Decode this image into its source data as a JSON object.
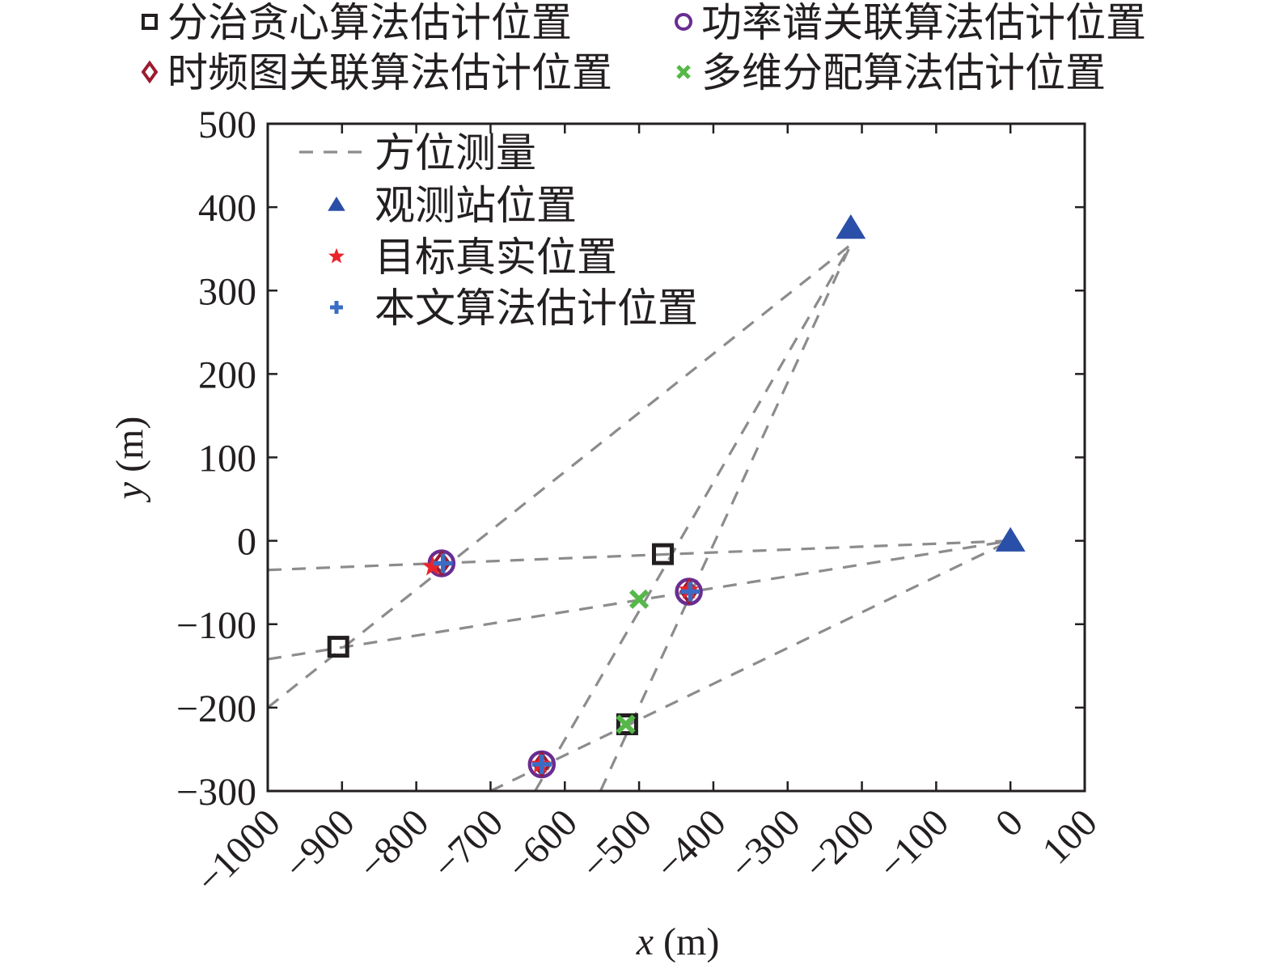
{
  "chart_data": {
    "type": "scatter",
    "xlabel_var": "x",
    "xlabel_unit": "(m)",
    "ylabel_var": "y",
    "ylabel_unit": "(m)",
    "xlim": [
      -1000,
      100
    ],
    "ylim": [
      -300,
      500
    ],
    "x_ticks": [
      -1000,
      -900,
      -800,
      -700,
      -600,
      -500,
      -400,
      -300,
      -200,
      -100,
      0,
      100
    ],
    "x_tick_labels": [
      "−1000",
      "−900",
      "−800",
      "−700",
      "−600",
      "−500",
      "−400",
      "−300",
      "−200",
      "−100",
      "0",
      "100"
    ],
    "y_ticks": [
      -300,
      -200,
      -100,
      0,
      100,
      200,
      300,
      400,
      500
    ],
    "y_tick_labels": [
      "−300",
      "−200",
      "−100",
      "0",
      "100",
      "200",
      "300",
      "400",
      "500"
    ],
    "grid": false,
    "top_legend": [
      {
        "name": "分治贪心算法估计位置",
        "marker": "square",
        "color": "#231f20"
      },
      {
        "name": "功率谱关联算法估计位置",
        "marker": "circle",
        "color": "#6a2c91"
      },
      {
        "name": "时频图关联算法估计位置",
        "marker": "diamond",
        "color": "#9b1b30"
      },
      {
        "name": "多维分配算法估计位置",
        "marker": "x",
        "color": "#55b848"
      }
    ],
    "inner_legend": [
      {
        "name": "方位测量",
        "marker": "dash",
        "color": "#8c8c8c"
      },
      {
        "name": "观测站位置",
        "marker": "triangle",
        "color": "#2a4fa8"
      },
      {
        "name": "目标真实位置",
        "marker": "star",
        "color": "#e8242a"
      },
      {
        "name": "本文算法估计位置",
        "marker": "plus",
        "color": "#3b6cc4"
      }
    ],
    "legend_location": "top-left inside plot; additional legend above plot",
    "bearing_lines": [
      {
        "x": [
          -1000,
          0
        ],
        "y": [
          -35,
          0
        ]
      },
      {
        "x": [
          -1000,
          0
        ],
        "y": [
          -142,
          0
        ]
      },
      {
        "x": [
          -700,
          0
        ],
        "y": [
          -300,
          0
        ]
      },
      {
        "x": [
          -1000,
          -215
        ],
        "y": [
          -200,
          355
        ]
      },
      {
        "x": [
          -640,
          -215
        ],
        "y": [
          -300,
          355
        ]
      },
      {
        "x": [
          -552,
          -215
        ],
        "y": [
          -300,
          355
        ]
      }
    ],
    "series": [
      {
        "name": "观测站位置",
        "marker": "triangle",
        "color": "#2a4fa8",
        "x": [
          -215,
          0
        ],
        "y": [
          375,
          0
        ]
      },
      {
        "name": "分治贪心算法估计位置",
        "marker": "square",
        "color": "#231f20",
        "x": [
          -468,
          -905,
          -516
        ],
        "y": [
          -16,
          -127,
          -220
        ]
      },
      {
        "name": "功率谱关联算法估计位置",
        "marker": "circle",
        "color": "#6a2c91",
        "x": [
          -766,
          -433,
          -631
        ],
        "y": [
          -27,
          -61,
          -268
        ]
      },
      {
        "name": "时频图关联算法估计位置",
        "marker": "diamond",
        "color": "#9b1b30",
        "x": [
          -766,
          -433,
          -631
        ],
        "y": [
          -27,
          -61,
          -268
        ]
      },
      {
        "name": "多维分配算法估计位置",
        "marker": "x",
        "color": "#55b848",
        "x": [
          -500,
          -518
        ],
        "y": [
          -70,
          -220
        ]
      },
      {
        "name": "目标真实位置",
        "marker": "star",
        "color": "#e8242a",
        "x": [
          -778,
          -433,
          -633
        ],
        "y": [
          -31,
          -59,
          -268
        ]
      },
      {
        "name": "本文算法估计位置",
        "marker": "plus",
        "color": "#3b6cc4",
        "x": [
          -764,
          -431,
          -631
        ],
        "y": [
          -27,
          -61,
          -268
        ]
      }
    ]
  }
}
